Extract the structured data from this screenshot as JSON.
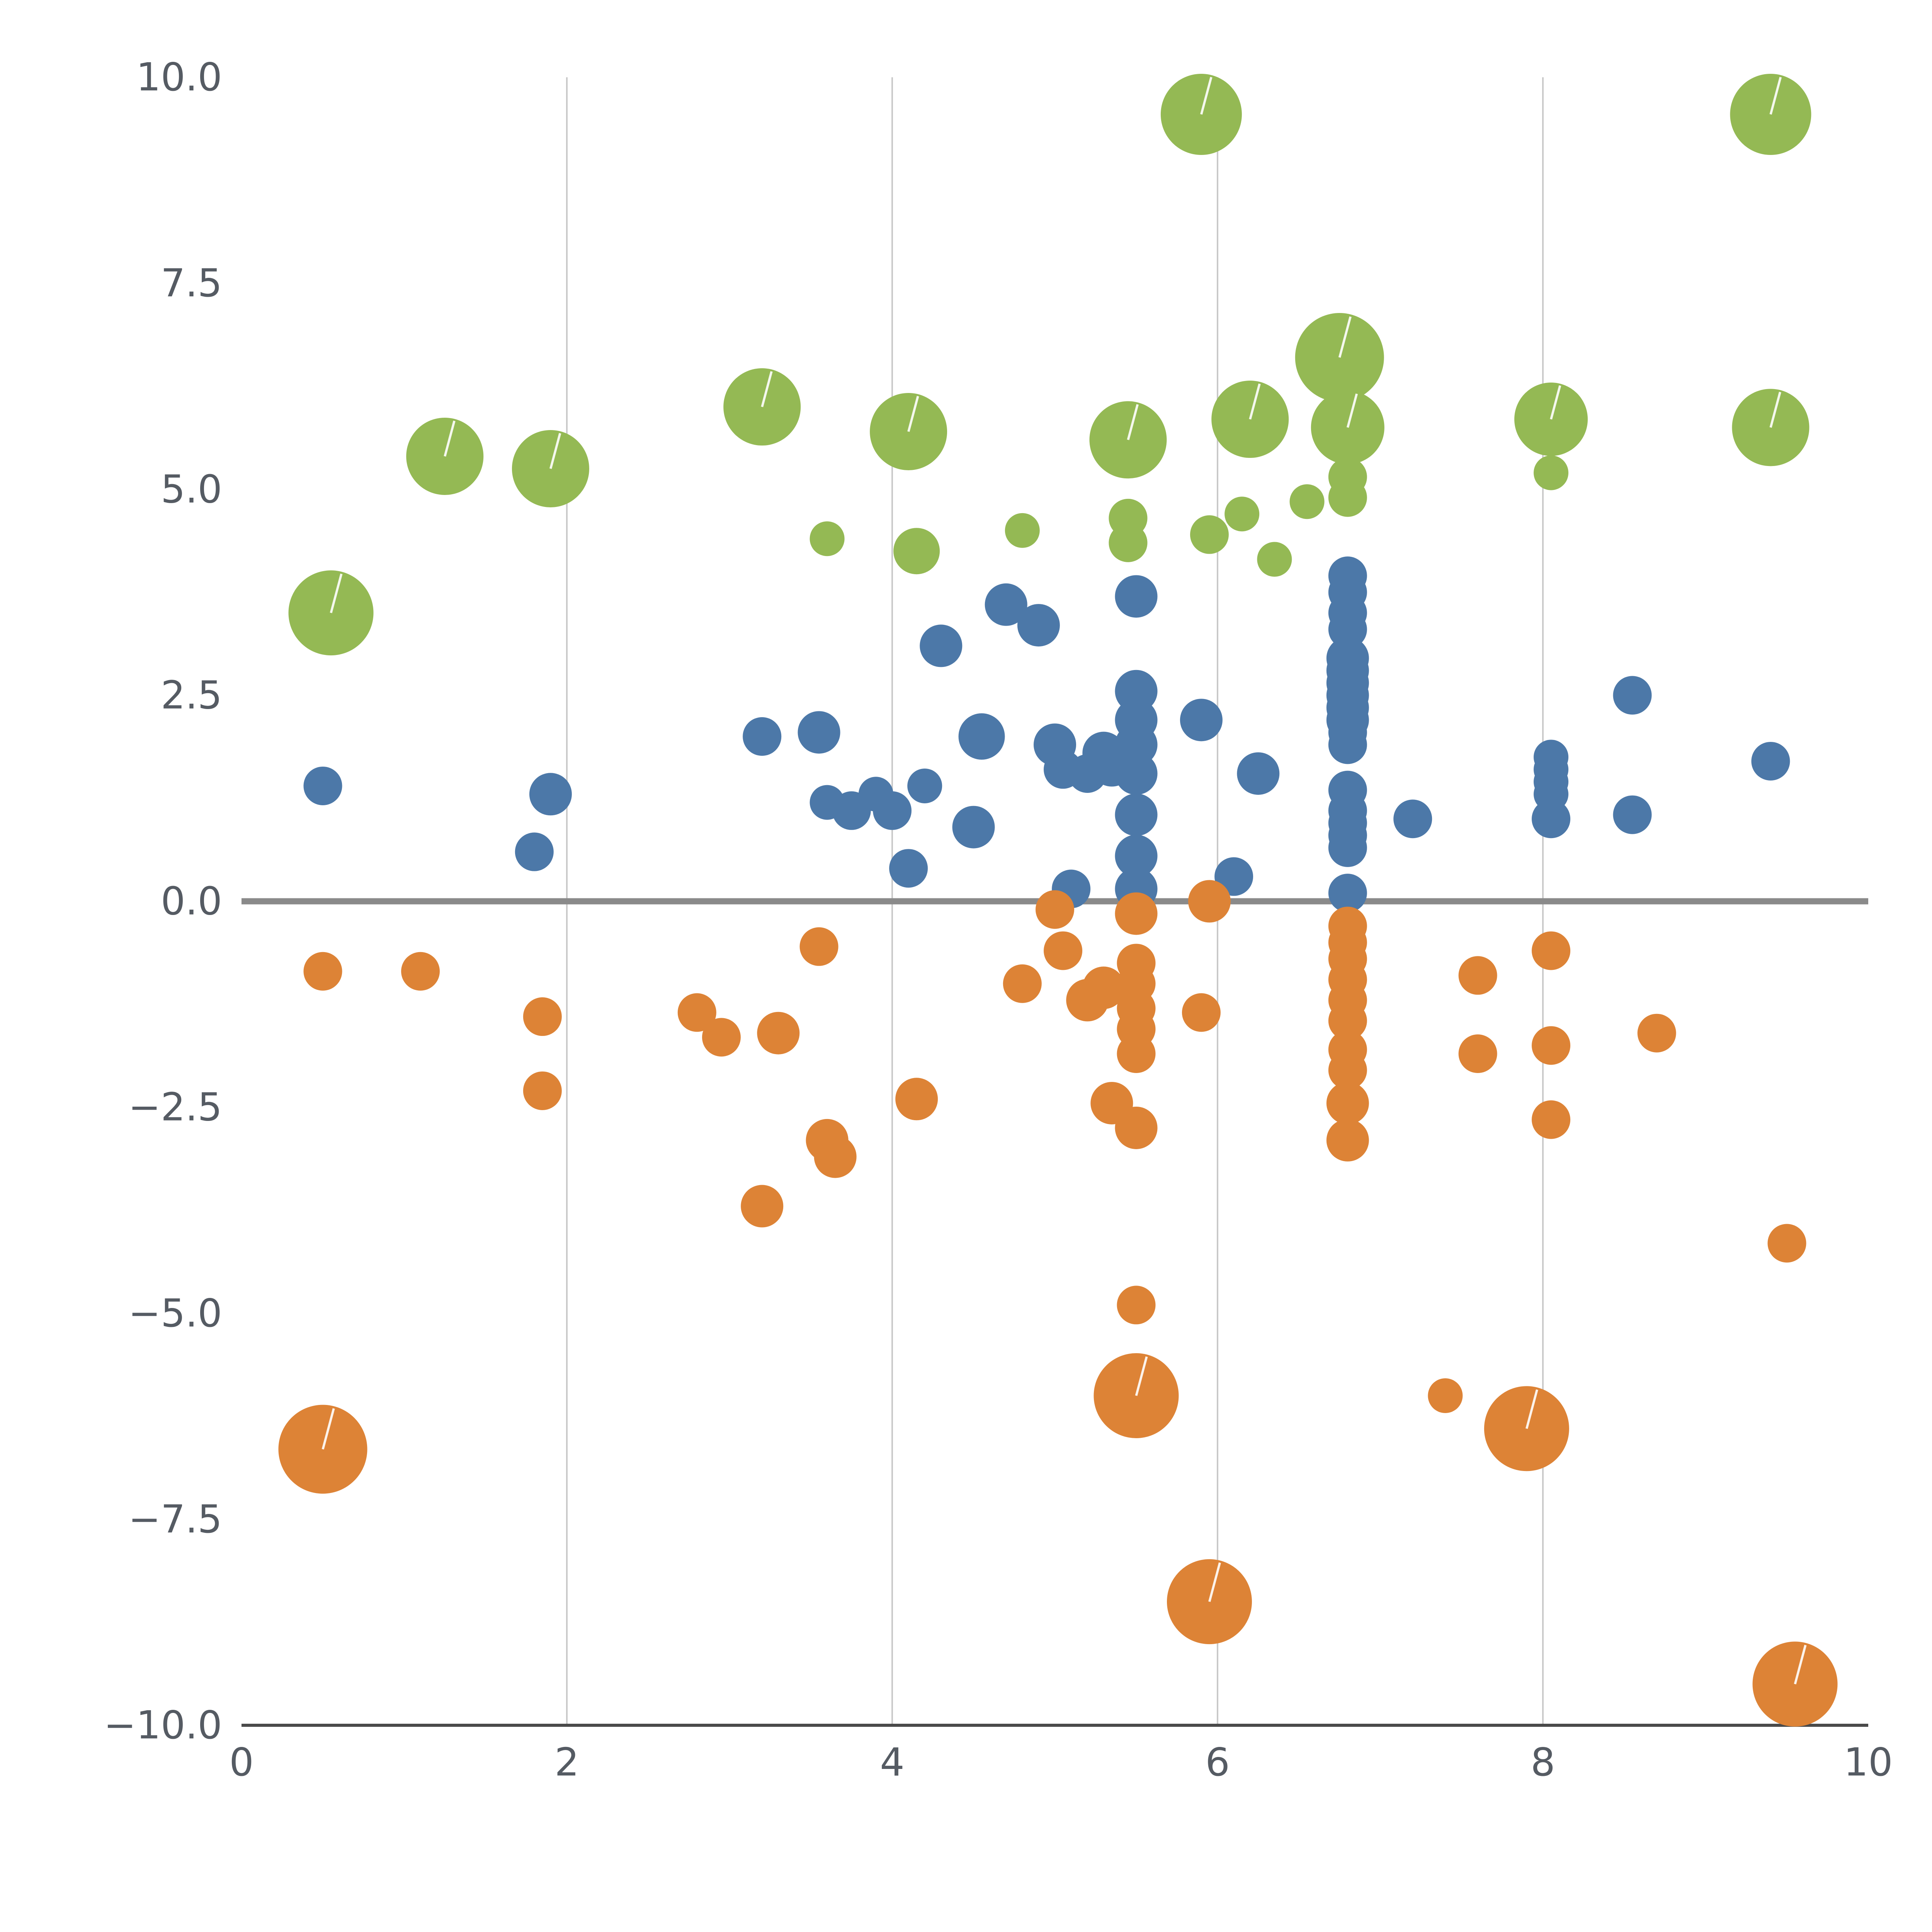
{
  "chart_data": {
    "type": "scatter",
    "title": "",
    "xlabel": "",
    "ylabel": "",
    "xlim": [
      0,
      10
    ],
    "ylim": [
      -10,
      10
    ],
    "x_tick_values": [
      0,
      2,
      4,
      6,
      8,
      10
    ],
    "x_tick_labels": [
      "0",
      "2",
      "4",
      "6",
      "8",
      "10"
    ],
    "y_tick_values": [
      10,
      7.5,
      5,
      2.5,
      0,
      -2.5,
      -5,
      -7.5,
      -10
    ],
    "y_tick_labels": [
      "10.0",
      "7.5",
      "5.0",
      "2.5",
      "0.0",
      "−2.5",
      "−5.0",
      "−7.5",
      "−10.0"
    ],
    "vertical_gridlines": [
      2,
      4,
      6,
      8
    ],
    "zero_line_y": 0,
    "legend": "none",
    "grid": "vertical-only",
    "colors": {
      "background": "#ffffff",
      "grid": "#c9c9c9",
      "zero_line": "#8a8a8a",
      "axis_line": "#4a4a4a",
      "tick_text": "#555b63",
      "bubble_tick_mark": "#ffffff"
    },
    "series": [
      {
        "name": "green",
        "color": "#94b954",
        "points": [
          [
            0.55,
            3.5,
            110
          ],
          [
            1.25,
            5.4,
            100
          ],
          [
            1.9,
            5.25,
            100
          ],
          [
            3.2,
            6.0,
            100
          ],
          [
            3.6,
            4.4,
            45
          ],
          [
            4.1,
            5.7,
            100
          ],
          [
            4.15,
            4.25,
            60
          ],
          [
            4.8,
            4.5,
            45
          ],
          [
            5.45,
            5.6,
            100
          ],
          [
            5.45,
            4.65,
            50
          ],
          [
            5.45,
            4.35,
            50
          ],
          [
            5.9,
            9.55,
            105
          ],
          [
            5.95,
            4.45,
            50
          ],
          [
            6.15,
            4.7,
            45
          ],
          [
            6.2,
            5.85,
            100
          ],
          [
            6.35,
            4.15,
            45
          ],
          [
            6.55,
            4.85,
            45
          ],
          [
            6.75,
            6.6,
            115
          ],
          [
            6.8,
            5.75,
            95
          ],
          [
            6.8,
            5.15,
            50
          ],
          [
            6.8,
            4.9,
            50
          ],
          [
            8.05,
            5.85,
            95
          ],
          [
            8.05,
            5.2,
            45
          ],
          [
            9.4,
            9.55,
            105
          ],
          [
            9.4,
            5.75,
            100
          ]
        ]
      },
      {
        "name": "blue",
        "color": "#4c78a8",
        "points": [
          [
            0.5,
            1.4,
            50
          ],
          [
            1.8,
            0.6,
            50
          ],
          [
            1.9,
            1.3,
            55
          ],
          [
            3.2,
            2.0,
            50
          ],
          [
            3.55,
            2.05,
            55
          ],
          [
            3.6,
            1.2,
            45
          ],
          [
            3.75,
            1.1,
            50
          ],
          [
            3.9,
            1.3,
            45
          ],
          [
            4.0,
            1.1,
            50
          ],
          [
            4.1,
            0.4,
            50
          ],
          [
            4.2,
            1.4,
            45
          ],
          [
            4.3,
            3.1,
            55
          ],
          [
            4.5,
            0.9,
            55
          ],
          [
            4.55,
            2.0,
            60
          ],
          [
            4.7,
            3.6,
            55
          ],
          [
            4.9,
            3.35,
            55
          ],
          [
            5.0,
            1.9,
            55
          ],
          [
            5.05,
            1.6,
            50
          ],
          [
            5.1,
            0.15,
            50
          ],
          [
            5.2,
            1.55,
            50
          ],
          [
            5.3,
            1.8,
            55
          ],
          [
            5.35,
            1.65,
            55
          ],
          [
            5.5,
            3.7,
            55
          ],
          [
            5.5,
            2.55,
            55
          ],
          [
            5.5,
            2.2,
            55
          ],
          [
            5.5,
            1.9,
            55
          ],
          [
            5.5,
            1.55,
            55
          ],
          [
            5.5,
            1.05,
            55
          ],
          [
            5.5,
            0.55,
            55
          ],
          [
            5.5,
            0.15,
            55
          ],
          [
            5.9,
            2.2,
            55
          ],
          [
            6.1,
            0.3,
            50
          ],
          [
            6.25,
            1.55,
            55
          ],
          [
            6.8,
            3.95,
            50
          ],
          [
            6.8,
            3.75,
            50
          ],
          [
            6.8,
            3.5,
            50
          ],
          [
            6.8,
            3.3,
            50
          ],
          [
            6.8,
            2.95,
            55
          ],
          [
            6.8,
            2.8,
            55
          ],
          [
            6.8,
            2.65,
            55
          ],
          [
            6.8,
            2.5,
            55
          ],
          [
            6.8,
            2.35,
            55
          ],
          [
            6.8,
            2.2,
            55
          ],
          [
            6.8,
            2.05,
            50
          ],
          [
            6.8,
            1.9,
            50
          ],
          [
            6.8,
            1.35,
            50
          ],
          [
            6.8,
            1.1,
            50
          ],
          [
            6.8,
            0.95,
            50
          ],
          [
            6.8,
            0.8,
            50
          ],
          [
            6.8,
            0.65,
            50
          ],
          [
            6.8,
            0.1,
            50
          ],
          [
            7.2,
            1.0,
            50
          ],
          [
            8.05,
            1.75,
            45
          ],
          [
            8.05,
            1.6,
            45
          ],
          [
            8.05,
            1.45,
            45
          ],
          [
            8.05,
            1.3,
            45
          ],
          [
            8.05,
            1.0,
            50
          ],
          [
            8.55,
            2.5,
            50
          ],
          [
            8.55,
            1.05,
            50
          ],
          [
            9.4,
            1.7,
            50
          ]
        ]
      },
      {
        "name": "orange",
        "color": "#dd8336",
        "points": [
          [
            0.5,
            -0.85,
            50
          ],
          [
            0.5,
            -6.65,
            115
          ],
          [
            1.1,
            -0.85,
            50
          ],
          [
            1.85,
            -1.4,
            50
          ],
          [
            1.85,
            -2.3,
            50
          ],
          [
            2.8,
            -1.35,
            50
          ],
          [
            2.95,
            -1.65,
            50
          ],
          [
            3.2,
            -3.7,
            55
          ],
          [
            3.3,
            -1.6,
            55
          ],
          [
            3.55,
            -0.55,
            50
          ],
          [
            3.6,
            -2.9,
            55
          ],
          [
            3.65,
            -3.1,
            55
          ],
          [
            4.15,
            -2.4,
            55
          ],
          [
            4.8,
            -1.0,
            50
          ],
          [
            5.0,
            -0.1,
            50
          ],
          [
            5.05,
            -0.6,
            50
          ],
          [
            5.2,
            -1.2,
            55
          ],
          [
            5.3,
            -1.05,
            55
          ],
          [
            5.35,
            -2.45,
            55
          ],
          [
            5.5,
            -0.15,
            55
          ],
          [
            5.5,
            -0.75,
            50
          ],
          [
            5.5,
            -1.0,
            50
          ],
          [
            5.5,
            -1.3,
            50
          ],
          [
            5.5,
            -1.55,
            50
          ],
          [
            5.5,
            -1.85,
            50
          ],
          [
            5.5,
            -2.75,
            55
          ],
          [
            5.5,
            -4.9,
            50
          ],
          [
            5.5,
            -6.0,
            110
          ],
          [
            5.9,
            -1.35,
            50
          ],
          [
            5.95,
            0.0,
            55
          ],
          [
            5.95,
            -8.5,
            110
          ],
          [
            6.8,
            -0.3,
            50
          ],
          [
            6.8,
            -0.5,
            50
          ],
          [
            6.8,
            -0.7,
            50
          ],
          [
            6.8,
            -0.95,
            50
          ],
          [
            6.8,
            -1.2,
            50
          ],
          [
            6.8,
            -1.45,
            50
          ],
          [
            6.8,
            -1.8,
            50
          ],
          [
            6.8,
            -2.05,
            50
          ],
          [
            6.8,
            -2.45,
            55
          ],
          [
            6.8,
            -2.9,
            55
          ],
          [
            7.4,
            -6.0,
            45
          ],
          [
            7.6,
            -0.9,
            50
          ],
          [
            7.6,
            -1.85,
            50
          ],
          [
            7.9,
            -6.4,
            110
          ],
          [
            8.05,
            -0.6,
            50
          ],
          [
            8.05,
            -1.75,
            50
          ],
          [
            8.05,
            -2.65,
            50
          ],
          [
            8.7,
            -1.6,
            50
          ],
          [
            9.5,
            -4.15,
            50
          ],
          [
            9.55,
            -9.5,
            110
          ]
        ]
      }
    ]
  }
}
